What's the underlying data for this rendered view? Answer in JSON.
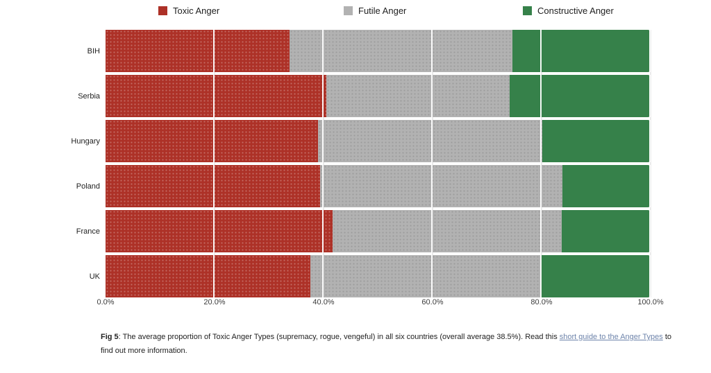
{
  "page": {
    "background": "#ffffff"
  },
  "legend": {
    "items": [
      {
        "label": "Toxic Anger",
        "color": "#ad3127"
      },
      {
        "label": "Futile Anger",
        "color": "#b2b2b2"
      },
      {
        "label": "Constructive Anger",
        "color": "#36814a"
      }
    ]
  },
  "chart_data": {
    "type": "bar",
    "variant": "horizontal-stacked-100-percent",
    "categories": [
      "BIH",
      "Serbia",
      "Hungary",
      "Poland",
      "France",
      "UK"
    ],
    "series": [
      {
        "name": "Toxic Anger",
        "color": "#ad3127",
        "values": [
          33.7,
          40.5,
          39.0,
          39.4,
          41.6,
          37.6
        ]
      },
      {
        "name": "Futile Anger",
        "color": "#b2b2b2",
        "values": [
          41.0,
          33.7,
          41.1,
          44.4,
          42.1,
          42.3
        ]
      },
      {
        "name": "Constructive Anger",
        "color": "#36814a",
        "values": [
          25.3,
          25.8,
          19.9,
          16.2,
          16.3,
          20.1
        ]
      }
    ],
    "x_ticks": [
      "0.0%",
      "20.0%",
      "40.0%",
      "60.0%",
      "80.0%",
      "100.0%"
    ],
    "xlim": [
      0,
      100
    ],
    "grid": "vertical lines at every 20%, white over bars",
    "legend_position": "top",
    "title": "",
    "xlabel": "",
    "ylabel": ""
  },
  "caption": {
    "fig_label": "Fig 5",
    "before_link": ": The average proportion of Toxic Anger Types (supremacy, rogue, vengeful) in all six countries (overall average 38.5%). Read this ",
    "link_text": "short guide to the Anger Types",
    "after_link": " to find out more information.",
    "link_color": "#6e84ab",
    "text_color": "#212121"
  }
}
